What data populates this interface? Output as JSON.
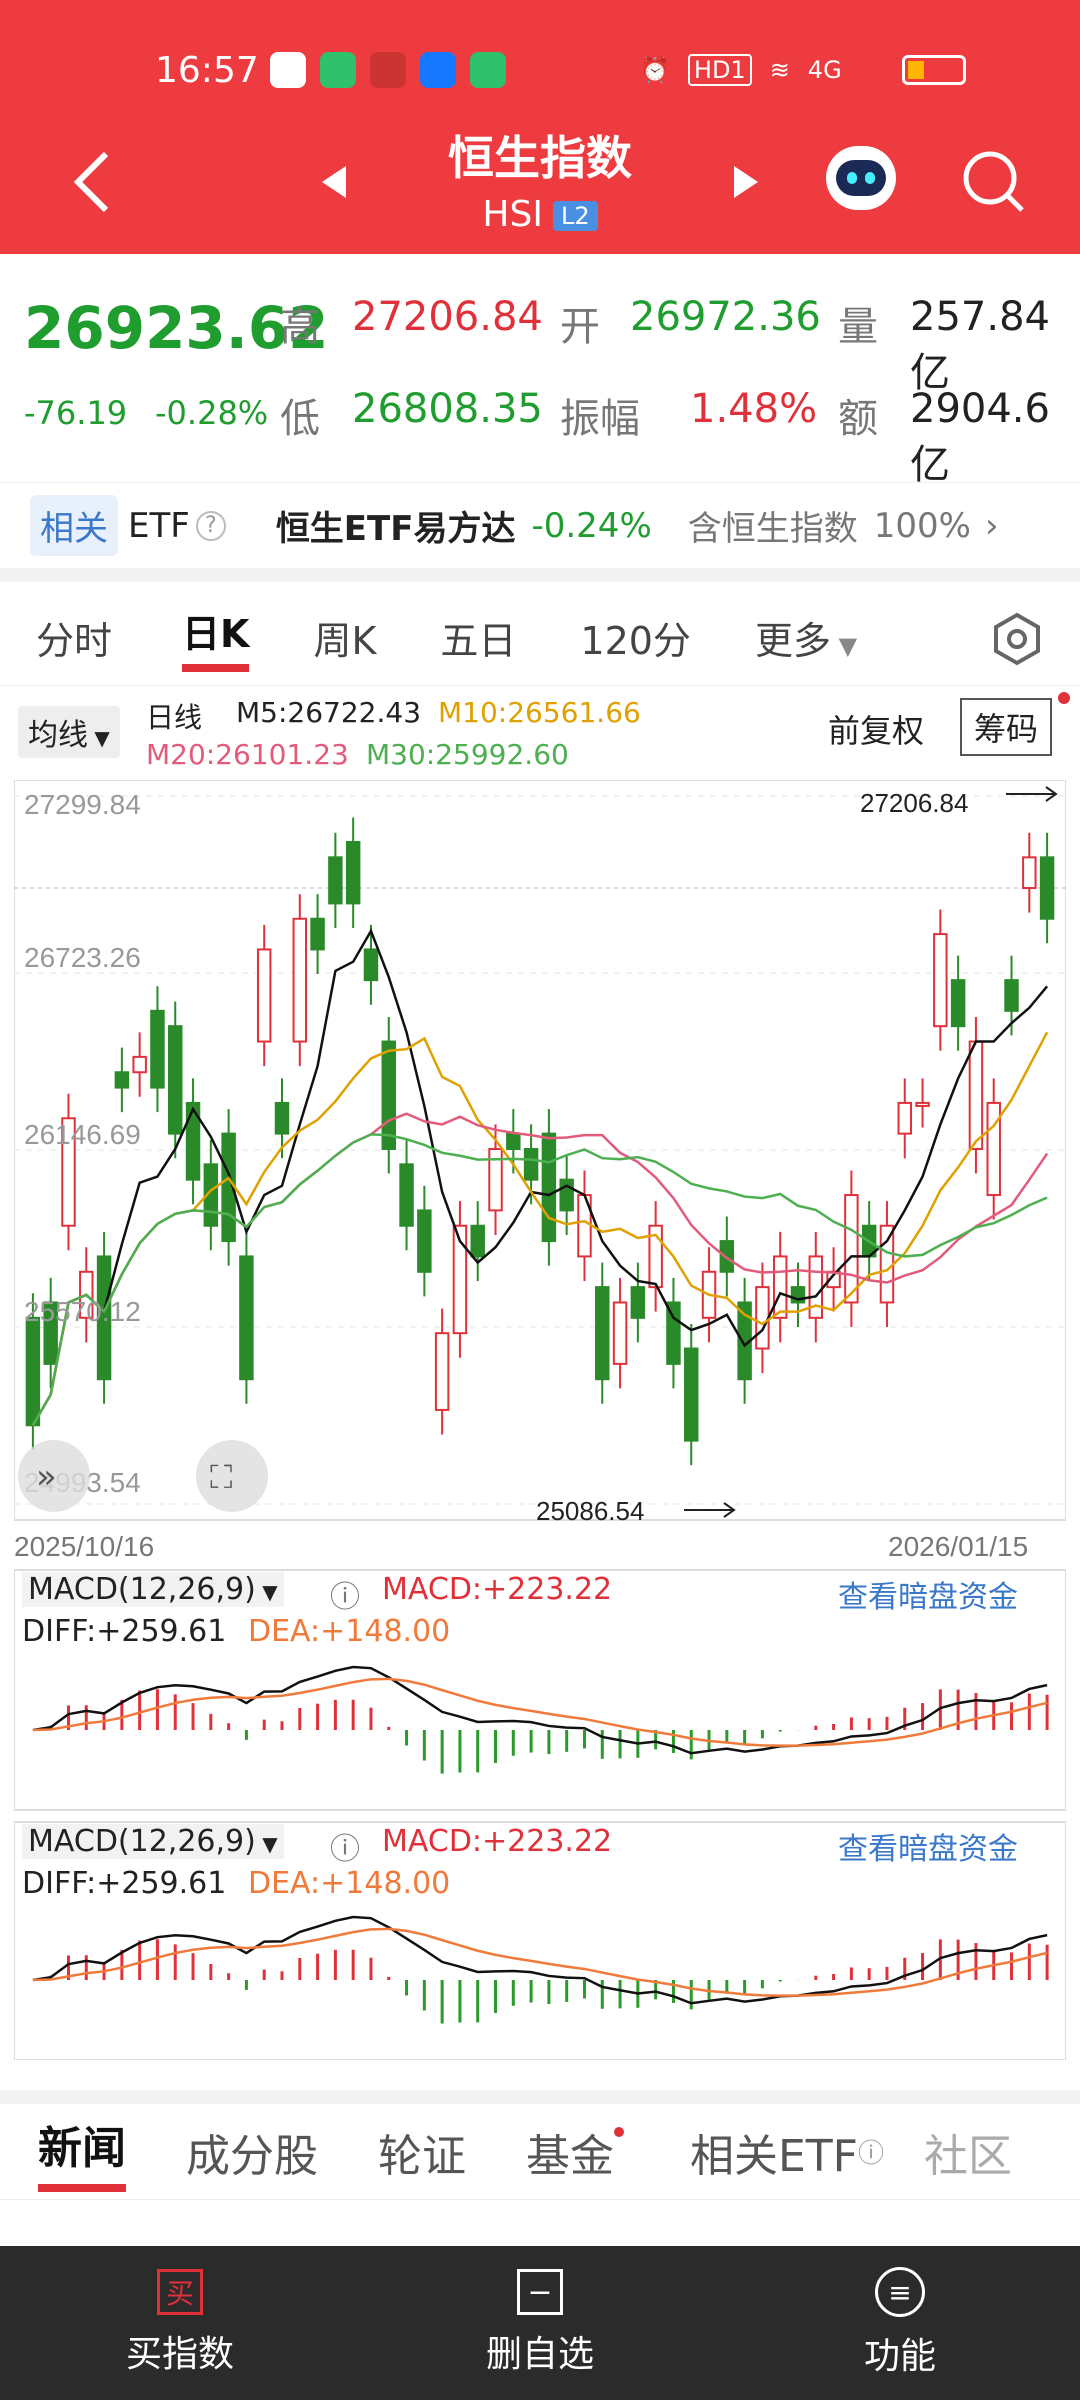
{
  "status": {
    "time": "16:57",
    "network": "4G",
    "hd": "HD1"
  },
  "nav": {
    "title": "恒生指数",
    "code": "HSI",
    "level": "L2"
  },
  "quote": {
    "price": "26923.62",
    "change": "-76.19",
    "change_pct": "-0.28%",
    "high_label": "高",
    "high": "27206.84",
    "open_label": "开",
    "open": "26972.36",
    "vol_label": "量",
    "vol": "257.84亿",
    "low_label": "低",
    "low": "26808.35",
    "amp_label": "振幅",
    "amp": "1.48%",
    "amt_label": "额",
    "amt": "2904.6亿"
  },
  "etf": {
    "tag": "相关",
    "label": "ETF",
    "name": "恒生ETF易方达",
    "pct": "-0.24%",
    "desc": "含恒生指数",
    "weight": "100%"
  },
  "tabs": [
    "分时",
    "日K",
    "周K",
    "五日",
    "120分",
    "更多"
  ],
  "ma": {
    "btn": "均线",
    "period": "日线",
    "m5": "M5:26722.43",
    "m10": "M10:26561.66",
    "m20": "M20:26101.23",
    "m30": "M30:25992.60",
    "fq": "前复权",
    "chip": "筹码"
  },
  "chart_data": {
    "type": "candlestick",
    "x_start": "2025/10/16",
    "x_end": "2026/01/15",
    "y_ticks": [
      "27299.84",
      "26723.26",
      "26146.69",
      "25570.12",
      "24993.54"
    ],
    "ylim": [
      24993.54,
      27299.84
    ],
    "max_label": "27206.84",
    "min_label": "25086.54",
    "candles": [
      [
        25600,
        25250
      ],
      [
        25650,
        25450
      ],
      [
        25900,
        26250
      ],
      [
        25600,
        25750
      ],
      [
        25800,
        25400
      ],
      [
        26400,
        26350
      ],
      [
        26400,
        26450
      ],
      [
        26600,
        26350
      ],
      [
        26550,
        26200
      ],
      [
        26300,
        26050
      ],
      [
        26100,
        25900
      ],
      [
        26200,
        25850
      ],
      [
        25800,
        25400
      ],
      [
        26500,
        26800
      ],
      [
        26300,
        26200
      ],
      [
        26500,
        26900
      ],
      [
        26900,
        26800
      ],
      [
        27100,
        26950
      ],
      [
        27150,
        26950
      ],
      [
        26800,
        26700
      ],
      [
        26500,
        26150
      ],
      [
        26100,
        25900
      ],
      [
        25950,
        25750
      ],
      [
        25300,
        25550
      ],
      [
        25550,
        25900
      ],
      [
        25900,
        25800
      ],
      [
        25950,
        26150
      ],
      [
        26200,
        26150
      ],
      [
        26150,
        26050
      ],
      [
        26200,
        25850
      ],
      [
        26050,
        25950
      ],
      [
        25800,
        26000
      ],
      [
        25700,
        25400
      ],
      [
        25450,
        25650
      ],
      [
        25700,
        25600
      ],
      [
        25700,
        25900
      ],
      [
        25650,
        25450
      ],
      [
        25500,
        25200
      ],
      [
        25600,
        25750
      ],
      [
        25850,
        25750
      ],
      [
        25650,
        25400
      ],
      [
        25500,
        25700
      ],
      [
        25600,
        25800
      ],
      [
        25700,
        25650
      ],
      [
        25600,
        25800
      ],
      [
        25700,
        25750
      ],
      [
        25650,
        26000
      ],
      [
        25900,
        25800
      ],
      [
        25650,
        25900
      ],
      [
        26200,
        26300
      ],
      [
        26300,
        26300
      ],
      [
        26550,
        26850
      ],
      [
        26700,
        26550
      ],
      [
        26150,
        26500
      ],
      [
        26000,
        26300
      ],
      [
        26700,
        26600
      ],
      [
        27000,
        27100
      ],
      [
        27100,
        26900
      ]
    ],
    "macd": {
      "label": "MACD(12,26,9)",
      "macd": "MACD:+223.22",
      "diff": "DIFF:+259.61",
      "dea": "DEA:+148.00",
      "link": "查看暗盘资金"
    }
  },
  "bottom": {
    "tabs": [
      "新闻",
      "成分股",
      "轮证",
      "基金",
      "相关ETF",
      "社区"
    ]
  },
  "footer": {
    "buy": "买指数",
    "del": "删自选",
    "func": "功能",
    "buy_icon": "买"
  }
}
